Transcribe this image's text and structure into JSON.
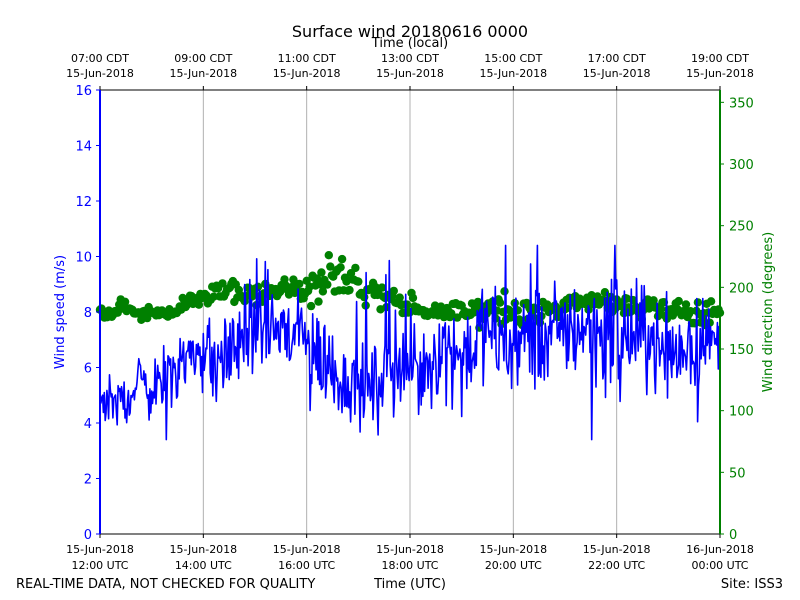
{
  "chart_data": {
    "type": "line",
    "title": "Surface wind 20180616 0000",
    "top_axis_label": "Time (local)",
    "top_ticks": [
      {
        "t": 0,
        "line1": "07:00 CDT",
        "line2": "15-Jun-2018"
      },
      {
        "t": 2,
        "line1": "09:00 CDT",
        "line2": "15-Jun-2018"
      },
      {
        "t": 4,
        "line1": "11:00 CDT",
        "line2": "15-Jun-2018"
      },
      {
        "t": 6,
        "line1": "13:00 CDT",
        "line2": "15-Jun-2018"
      },
      {
        "t": 8,
        "line1": "15:00 CDT",
        "line2": "15-Jun-2018"
      },
      {
        "t": 10,
        "line1": "17:00 CDT",
        "line2": "15-Jun-2018"
      },
      {
        "t": 12,
        "line1": "19:00 CDT",
        "line2": "15-Jun-2018"
      }
    ],
    "bottom_ticks": [
      {
        "t": 0,
        "line1": "15-Jun-2018",
        "line2": "12:00 UTC"
      },
      {
        "t": 2,
        "line1": "15-Jun-2018",
        "line2": "14:00 UTC"
      },
      {
        "t": 4,
        "line1": "15-Jun-2018",
        "line2": "16:00 UTC"
      },
      {
        "t": 6,
        "line1": "15-Jun-2018",
        "line2": "18:00 UTC"
      },
      {
        "t": 8,
        "line1": "15-Jun-2018",
        "line2": "20:00 UTC"
      },
      {
        "t": 10,
        "line1": "15-Jun-2018",
        "line2": "22:00 UTC"
      },
      {
        "t": 12,
        "line1": "16-Jun-2018",
        "line2": "00:00 UTC"
      }
    ],
    "xlim_hours": [
      0,
      12
    ],
    "ylabel_left": "Wind speed (m/s)",
    "ylabel_right": "Wind direction (degrees)",
    "ylim_left": [
      0,
      16
    ],
    "ylim_right": [
      0,
      360
    ],
    "yticks_left": [
      0,
      2,
      4,
      6,
      8,
      10,
      12,
      14,
      16
    ],
    "yticks_right": [
      0,
      50,
      100,
      150,
      200,
      250,
      300,
      350
    ],
    "grid": "vertical at labeled times",
    "colors": {
      "speed": "#0000ff",
      "direction": "#008000",
      "grid": "#b0b0b0"
    },
    "series": [
      {
        "name": "Wind speed",
        "axis": "left",
        "style": "line",
        "hours": [
          0,
          0.25,
          0.5,
          0.75,
          1,
          1.25,
          1.5,
          1.75,
          2,
          2.25,
          2.5,
          2.75,
          3,
          3.25,
          3.5,
          3.75,
          4,
          4.25,
          4.5,
          4.75,
          5,
          5.25,
          5.5,
          5.75,
          6,
          6.25,
          6.5,
          6.75,
          7,
          7.25,
          7.5,
          7.75,
          8,
          8.25,
          8.5,
          8.75,
          9,
          9.25,
          9.5,
          9.75,
          10,
          10.25,
          10.5,
          10.75,
          11,
          11.25,
          11.5,
          11.75,
          12
        ],
        "values": [
          5.0,
          4.6,
          4.9,
          5.5,
          5.2,
          5.6,
          6.4,
          6.3,
          6.6,
          6.1,
          6.5,
          7.2,
          7.4,
          7.6,
          7.4,
          7.0,
          6.9,
          6.4,
          5.9,
          5.4,
          5.6,
          5.2,
          5.8,
          6.0,
          6.0,
          6.2,
          6.6,
          6.8,
          6.4,
          7.0,
          7.3,
          6.9,
          7.0,
          6.8,
          7.1,
          7.3,
          7.4,
          7.5,
          7.6,
          7.3,
          7.5,
          7.1,
          7.0,
          6.9,
          6.8,
          6.6,
          6.9,
          6.8,
          6.8
        ],
        "amplitude": [
          0.7,
          0.7,
          0.7,
          0.8,
          0.8,
          0.9,
          1.0,
          1.0,
          1.0,
          1.1,
          1.1,
          1.2,
          1.3,
          1.3,
          1.3,
          1.3,
          1.3,
          1.3,
          1.2,
          1.1,
          1.1,
          1.1,
          1.1,
          1.1,
          1.2,
          1.2,
          1.2,
          1.3,
          1.3,
          1.3,
          1.3,
          1.3,
          1.3,
          1.3,
          1.4,
          1.4,
          1.4,
          1.4,
          1.4,
          1.4,
          1.4,
          1.4,
          1.3,
          1.3,
          1.3,
          1.3,
          1.2,
          1.2,
          1.2
        ]
      },
      {
        "name": "Wind direction",
        "axis": "right",
        "style": "markers",
        "hours": [
          0,
          0.25,
          0.5,
          0.75,
          1,
          1.25,
          1.5,
          1.75,
          2,
          2.25,
          2.5,
          2.75,
          3,
          3.25,
          3.5,
          3.75,
          4,
          4.25,
          4.5,
          4.75,
          5,
          5.25,
          5.5,
          5.75,
          6,
          6.25,
          6.5,
          6.75,
          7,
          7.25,
          7.5,
          7.75,
          8,
          8.25,
          8.5,
          8.75,
          9,
          9.25,
          9.5,
          9.75,
          10,
          10.25,
          10.5,
          10.75,
          11,
          11.25,
          11.5,
          11.75,
          12
        ],
        "values": [
          178,
          180,
          183,
          181,
          178,
          179,
          182,
          187,
          191,
          195,
          197,
          194,
          193,
          196,
          198,
          199,
          200,
          205,
          210,
          208,
          202,
          196,
          192,
          186,
          184,
          181,
          179,
          181,
          182,
          180,
          181,
          184,
          182,
          180,
          181,
          181,
          184,
          185,
          187,
          188,
          186,
          183,
          184,
          185,
          182,
          181,
          180,
          180,
          180
        ],
        "amplitude": [
          5,
          5,
          5,
          5,
          5,
          5,
          5,
          6,
          6,
          6,
          6,
          6,
          6,
          6,
          6,
          6,
          8,
          14,
          14,
          12,
          12,
          10,
          8,
          7,
          7,
          7,
          7,
          8,
          8,
          8,
          8,
          8,
          7,
          7,
          7,
          7,
          7,
          7,
          7,
          7,
          7,
          7,
          7,
          7,
          7,
          7,
          7,
          7,
          7
        ]
      }
    ]
  },
  "footer": {
    "left": "REAL-TIME DATA, NOT CHECKED FOR QUALITY",
    "center": "Time (UTC)",
    "right": "Site: ISS3"
  }
}
